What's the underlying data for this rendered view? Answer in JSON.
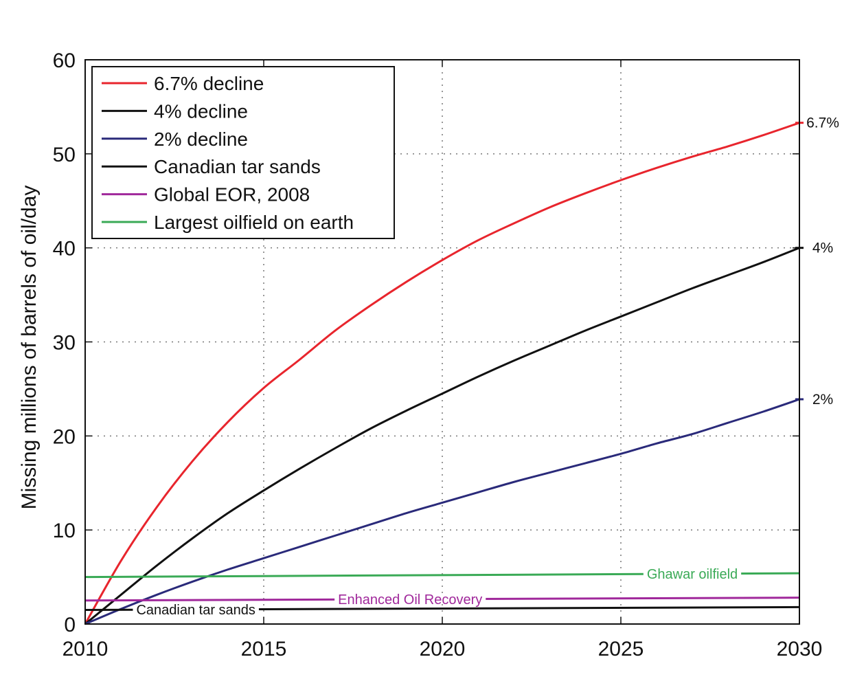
{
  "chart_data": {
    "type": "line",
    "title": "",
    "xlabel": "",
    "ylabel": "Missing millions of barrels of oil/day",
    "xlim": [
      2010,
      2030
    ],
    "ylim": [
      0,
      60
    ],
    "xticks": [
      2010,
      2015,
      2020,
      2025,
      2030
    ],
    "yticks": [
      0,
      10,
      20,
      30,
      40,
      50,
      60
    ],
    "grid": "dotted",
    "legend_position": "top-left",
    "series": [
      {
        "name": "6.7% decline",
        "color": "#e8252d",
        "end_label": "6.7%",
        "x": [
          2010,
          2011,
          2012,
          2013,
          2014,
          2015,
          2016,
          2017,
          2018,
          2019,
          2020,
          2021,
          2022,
          2023,
          2024,
          2025,
          2026,
          2027,
          2028,
          2029,
          2030
        ],
        "y": [
          0,
          6.7,
          12.4,
          17.3,
          21.5,
          25.1,
          28.1,
          31.2,
          33.9,
          36.4,
          38.7,
          40.8,
          42.6,
          44.3,
          45.8,
          47.2,
          48.5,
          49.7,
          50.8,
          52.0,
          53.3
        ]
      },
      {
        "name": "4% decline",
        "color": "#111111",
        "end_label": "4%",
        "x": [
          2010,
          2011,
          2012,
          2013,
          2014,
          2015,
          2016,
          2017,
          2018,
          2019,
          2020,
          2021,
          2022,
          2023,
          2024,
          2025,
          2026,
          2027,
          2028,
          2029,
          2030
        ],
        "y": [
          0,
          3.1,
          6.2,
          9.1,
          11.8,
          14.2,
          16.5,
          18.7,
          20.8,
          22.7,
          24.5,
          26.3,
          28.0,
          29.6,
          31.2,
          32.7,
          34.2,
          35.7,
          37.1,
          38.5,
          40.0
        ]
      },
      {
        "name": "2% decline",
        "color": "#2a2a7a",
        "end_label": "2%",
        "x": [
          2010,
          2011,
          2012,
          2013,
          2014,
          2015,
          2016,
          2017,
          2018,
          2019,
          2020,
          2021,
          2022,
          2023,
          2024,
          2025,
          2026,
          2027,
          2028,
          2029,
          2030
        ],
        "y": [
          0,
          1.6,
          3.1,
          4.5,
          5.8,
          7.0,
          8.2,
          9.4,
          10.6,
          11.8,
          12.9,
          14.0,
          15.1,
          16.1,
          17.1,
          18.1,
          19.2,
          20.2,
          21.4,
          22.6,
          23.9
        ]
      },
      {
        "name": "Canadian tar sands",
        "color": "#111111",
        "annotation": "Canadian tar sands",
        "x": [
          2010,
          2030
        ],
        "y": [
          1.5,
          1.8
        ]
      },
      {
        "name": "Global EOR, 2008",
        "color": "#a0289b",
        "annotation": "Enhanced Oil Recovery",
        "x": [
          2010,
          2030
        ],
        "y": [
          2.5,
          2.8
        ]
      },
      {
        "name": "Largest oilfield on earth",
        "color": "#3aaa56",
        "annotation": "Ghawar oilfield",
        "x": [
          2010,
          2030
        ],
        "y": [
          5.0,
          5.4
        ]
      }
    ]
  }
}
